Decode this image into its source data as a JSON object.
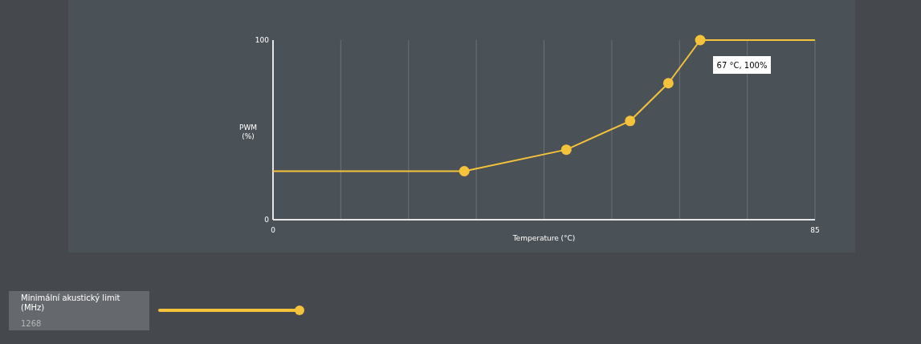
{
  "chart_data": {
    "type": "line",
    "xlabel": "Temperature (°C)",
    "ylabel": "PWM\n(%)",
    "xlim": [
      0,
      85
    ],
    "ylim": [
      0,
      100
    ],
    "xticks": [
      0,
      {
        "value": 10.625,
        "label": null
      },
      {
        "value": 21.25,
        "label": null
      },
      {
        "value": 31.875,
        "label": null
      },
      {
        "value": 42.5,
        "label": null
      },
      {
        "value": 53.125,
        "label": null
      },
      {
        "value": 63.75,
        "label": null
      },
      {
        "value": 74.375,
        "label": null
      },
      85
    ],
    "yticks": [
      0,
      100
    ],
    "grid": "x",
    "series": [
      {
        "color": "#f5c33b",
        "marker": "none",
        "x": [
          0,
          30,
          46,
          56,
          62,
          67,
          85
        ],
        "values": [
          27,
          27,
          39,
          55,
          76,
          100,
          100
        ]
      },
      {
        "type": "scatter",
        "color": "#f5c33b",
        "marker": "circle",
        "x": [
          30,
          46,
          56,
          62,
          67
        ],
        "values": [
          27,
          39,
          55,
          76,
          100
        ]
      }
    ],
    "annotations": [
      "67 °C, 100%",
      "Minimální akustický limit\n(MHz)",
      "1268"
    ]
  }
}
